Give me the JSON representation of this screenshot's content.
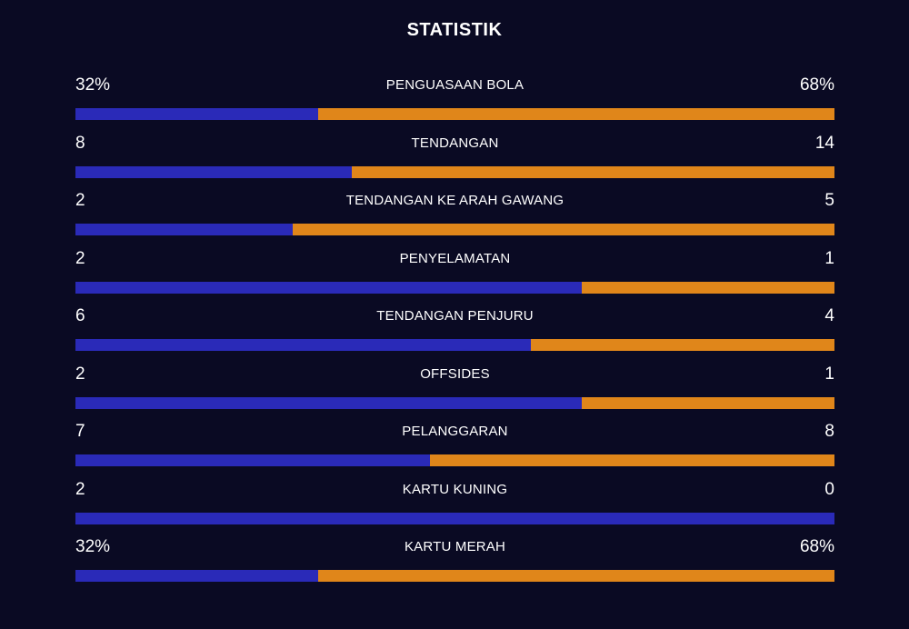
{
  "header": {
    "title": "STATISTIK"
  },
  "colors": {
    "background": "#0a0a23",
    "home": "#2a2ab8",
    "away": "#e0861a",
    "text": "#ffffff"
  },
  "stats": [
    {
      "label": "PENGUASAAN BOLA",
      "home": "32%",
      "away": "68%",
      "home_share": 0.32
    },
    {
      "label": "TENDANGAN",
      "home": "8",
      "away": "14",
      "home_share": 0.364
    },
    {
      "label": "TENDANGAN KE ARAH GAWANG",
      "home": "2",
      "away": "5",
      "home_share": 0.286
    },
    {
      "label": "PENYELAMATAN",
      "home": "2",
      "away": "1",
      "home_share": 0.667
    },
    {
      "label": "TENDANGAN PENJURU",
      "home": "6",
      "away": "4",
      "home_share": 0.6
    },
    {
      "label": "OFFSIDES",
      "home": "2",
      "away": "1",
      "home_share": 0.667
    },
    {
      "label": "PELANGGARAN",
      "home": "7",
      "away": "8",
      "home_share": 0.467
    },
    {
      "label": "KARTU KUNING",
      "home": "2",
      "away": "0",
      "home_share": 1.0
    },
    {
      "label": "KARTU MERAH",
      "home": "32%",
      "away": "68%",
      "home_share": 0.32
    }
  ]
}
